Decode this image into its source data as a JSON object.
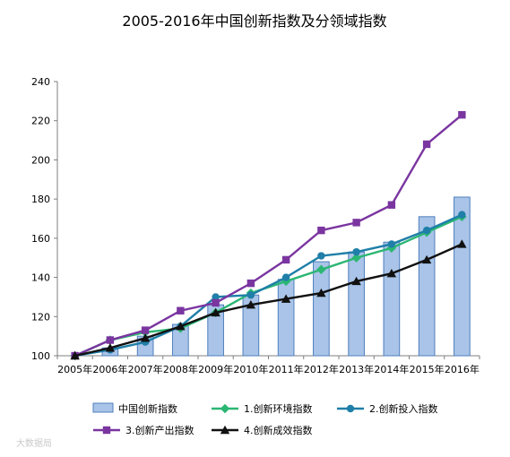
{
  "watermark": "大数据局",
  "chart_data": {
    "type": "bar+line",
    "title": "2005-2016年中国创新指数及分领域指数",
    "categories": [
      "2005年",
      "2006年",
      "2007年",
      "2008年",
      "2009年",
      "2010年",
      "2011年",
      "2012年",
      "2013年",
      "2014年",
      "2015年",
      "2016年"
    ],
    "ylim": [
      100,
      240
    ],
    "yticks": [
      100,
      120,
      140,
      160,
      180,
      200,
      220,
      240
    ],
    "bar": {
      "name": "中国创新指数",
      "color": "#a9c4e8",
      "stroke": "#4f7fbd",
      "values": [
        100,
        104,
        110,
        116,
        126,
        131,
        139,
        148,
        153,
        158,
        171,
        181
      ]
    },
    "series": [
      {
        "name": "1.创新环境指数",
        "color": "#2bb673",
        "marker": "diamond",
        "values": [
          100,
          108,
          112,
          114,
          122,
          132,
          138,
          144,
          150,
          155,
          163,
          171
        ]
      },
      {
        "name": "2.创新投入指数",
        "color": "#1f7fa8",
        "marker": "circle",
        "values": [
          100,
          103,
          107,
          115,
          130,
          131,
          140,
          151,
          153,
          157,
          164,
          172
        ]
      },
      {
        "name": "3.创新产出指数",
        "color": "#7a35a0",
        "marker": "square",
        "values": [
          100,
          108,
          113,
          123,
          127,
          137,
          149,
          164,
          168,
          177,
          208,
          223
        ]
      },
      {
        "name": "4.创新成效指数",
        "color": "#111111",
        "marker": "triangle",
        "values": [
          100,
          104,
          109,
          115,
          122,
          126,
          129,
          132,
          138,
          142,
          149,
          157
        ]
      }
    ],
    "legend_position": "bottom",
    "grid": false
  }
}
